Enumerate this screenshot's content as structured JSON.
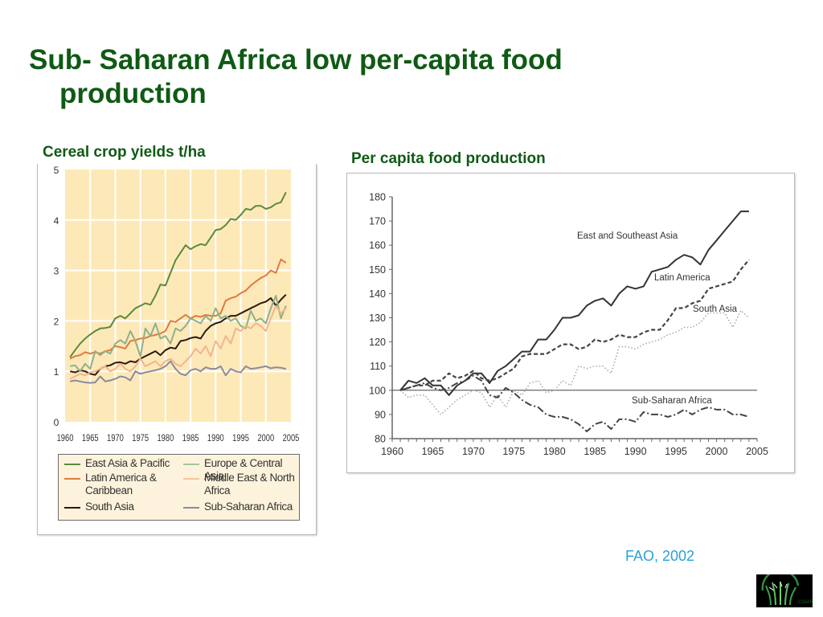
{
  "slide": {
    "title_line1": "Sub- Saharan Africa low per-capita food",
    "title_line2": "production",
    "citation": "FAO, 2002",
    "logo": "cgiar-wheat-logo"
  },
  "colors": {
    "title": "#0f5a14",
    "citation": "#2aa0d8",
    "left_plot_bg": "#fde9b8"
  },
  "chart_data": [
    {
      "type": "line",
      "title": "Cereal crop yields t/ha",
      "xlabel": "",
      "ylabel": "",
      "xlim": [
        1960,
        2005
      ],
      "ylim": [
        0,
        5
      ],
      "xticks": [
        "1960",
        "1965",
        "1970",
        "1975",
        "1980",
        "1985",
        "1990",
        "1995",
        "2000",
        "2005"
      ],
      "yticks": [
        "0",
        "1",
        "2",
        "3",
        "4",
        "5"
      ],
      "grid": true,
      "legend_position": "bottom",
      "x": [
        1961,
        1962,
        1963,
        1964,
        1965,
        1966,
        1967,
        1968,
        1969,
        1970,
        1971,
        1972,
        1973,
        1974,
        1975,
        1976,
        1977,
        1978,
        1979,
        1980,
        1981,
        1982,
        1983,
        1984,
        1985,
        1986,
        1987,
        1988,
        1989,
        1990,
        1991,
        1992,
        1993,
        1994,
        1995,
        1996,
        1997,
        1998,
        1999,
        2000,
        2001,
        2002,
        2003,
        2004
      ],
      "series": [
        {
          "name": "East Asia & Pacific",
          "color": "#5a8a3c",
          "values": [
            1.28,
            1.42,
            1.55,
            1.65,
            1.73,
            1.8,
            1.85,
            1.86,
            1.88,
            2.05,
            2.1,
            2.05,
            2.15,
            2.25,
            2.3,
            2.35,
            2.32,
            2.5,
            2.72,
            2.7,
            2.95,
            3.2,
            3.35,
            3.5,
            3.42,
            3.48,
            3.52,
            3.5,
            3.65,
            3.8,
            3.82,
            3.9,
            4.02,
            4.0,
            4.1,
            4.22,
            4.2,
            4.28,
            4.28,
            4.22,
            4.25,
            4.32,
            4.35,
            4.55
          ]
        },
        {
          "name": "Latin America & Caribbean",
          "color": "#e07a3c",
          "values": [
            1.25,
            1.3,
            1.32,
            1.38,
            1.35,
            1.38,
            1.35,
            1.4,
            1.42,
            1.5,
            1.48,
            1.45,
            1.6,
            1.62,
            1.65,
            1.66,
            1.7,
            1.72,
            1.75,
            1.8,
            2.0,
            1.98,
            2.05,
            2.12,
            2.05,
            2.1,
            2.08,
            2.12,
            2.1,
            2.1,
            2.15,
            2.4,
            2.45,
            2.48,
            2.55,
            2.6,
            2.7,
            2.78,
            2.85,
            2.9,
            3.0,
            2.95,
            3.22,
            3.15
          ]
        },
        {
          "name": "South Asia",
          "color": "#2a1a14",
          "values": [
            1.0,
            0.98,
            1.02,
            1.0,
            0.95,
            0.93,
            1.05,
            1.1,
            1.12,
            1.17,
            1.18,
            1.15,
            1.2,
            1.18,
            1.25,
            1.3,
            1.35,
            1.4,
            1.32,
            1.42,
            1.47,
            1.45,
            1.6,
            1.62,
            1.66,
            1.68,
            1.65,
            1.8,
            1.9,
            1.95,
            1.98,
            2.05,
            2.1,
            2.1,
            2.15,
            2.2,
            2.25,
            2.3,
            2.35,
            2.38,
            2.45,
            2.3,
            2.42,
            2.52
          ]
        },
        {
          "name": "Europe & Central Asia",
          "color": "#8fb08a",
          "values": [
            1.1,
            1.12,
            1.0,
            1.15,
            1.05,
            1.4,
            1.32,
            1.4,
            1.35,
            1.55,
            1.62,
            1.55,
            1.8,
            1.6,
            1.3,
            1.85,
            1.7,
            1.95,
            1.65,
            1.7,
            1.55,
            1.85,
            1.8,
            1.9,
            2.05,
            2.0,
            1.95,
            2.1,
            2.0,
            2.25,
            2.05,
            2.1,
            2.0,
            2.05,
            1.9,
            1.85,
            2.2,
            2.0,
            2.05,
            1.95,
            2.25,
            2.5,
            2.05,
            2.3
          ]
        },
        {
          "name": "Middle East & North Africa",
          "color": "#f2b48c",
          "values": [
            0.85,
            0.9,
            0.95,
            0.92,
            0.98,
            1.0,
            1.05,
            1.1,
            1.0,
            1.05,
            1.15,
            1.05,
            1.0,
            1.1,
            1.25,
            1.1,
            1.15,
            1.2,
            1.1,
            1.2,
            1.25,
            1.15,
            1.1,
            1.2,
            1.3,
            1.45,
            1.35,
            1.5,
            1.3,
            1.6,
            1.45,
            1.7,
            1.55,
            1.85,
            1.8,
            1.9,
            1.85,
            1.95,
            1.9,
            1.8,
            2.05,
            2.3,
            2.15,
            2.25
          ]
        },
        {
          "name": "Sub-Saharan Africa",
          "color": "#8a8aa0",
          "values": [
            0.8,
            0.82,
            0.8,
            0.78,
            0.77,
            0.78,
            0.9,
            0.8,
            0.82,
            0.85,
            0.9,
            0.88,
            0.82,
            1.0,
            0.95,
            0.98,
            1.0,
            1.02,
            1.05,
            1.1,
            1.2,
            1.05,
            0.95,
            0.92,
            1.02,
            1.05,
            1.0,
            1.08,
            1.05,
            1.05,
            1.1,
            0.92,
            1.05,
            1.0,
            0.98,
            1.1,
            1.05,
            1.06,
            1.08,
            1.1,
            1.06,
            1.08,
            1.07,
            1.05
          ]
        }
      ]
    },
    {
      "type": "line",
      "title": "Per capita food production",
      "xlabel": "",
      "ylabel": "",
      "xlim": [
        1960,
        2005
      ],
      "ylim": [
        80,
        180
      ],
      "xticks": [
        "1960",
        "1965",
        "1970",
        "1975",
        "1980",
        "1985",
        "1990",
        "1995",
        "2000",
        "2005"
      ],
      "yticks": [
        "80",
        "90",
        "100",
        "110",
        "120",
        "130",
        "140",
        "150",
        "160",
        "170",
        "180"
      ],
      "grid": false,
      "reference_line": 100,
      "legend_position": "inline-labels",
      "x": [
        1961,
        1962,
        1963,
        1964,
        1965,
        1966,
        1967,
        1968,
        1969,
        1970,
        1971,
        1972,
        1973,
        1974,
        1975,
        1976,
        1977,
        1978,
        1979,
        1980,
        1981,
        1982,
        1983,
        1984,
        1985,
        1986,
        1987,
        1988,
        1989,
        1990,
        1991,
        1992,
        1993,
        1994,
        1995,
        1996,
        1997,
        1998,
        1999,
        2000,
        2001,
        2002,
        2003,
        2004
      ],
      "series": [
        {
          "name": "East and Southeast Asia",
          "label": "East and Southeast Asia",
          "style": "solid",
          "values": [
            100,
            104,
            103,
            105,
            102,
            102,
            98,
            102,
            104,
            107,
            107,
            103,
            108,
            110,
            113,
            116,
            116,
            121,
            121,
            125,
            130,
            130,
            131,
            135,
            137,
            138,
            135,
            140,
            143,
            142,
            143,
            149,
            150,
            151,
            154,
            156,
            155,
            152,
            158,
            162,
            166,
            170,
            174,
            174
          ]
        },
        {
          "name": "Latin America",
          "label": "Latin America",
          "style": "dashed",
          "values": [
            100,
            101,
            102,
            102,
            104,
            104,
            107,
            105,
            106,
            108,
            105,
            104,
            105,
            107,
            109,
            114,
            115,
            115,
            115,
            117,
            119,
            119,
            117,
            118,
            121,
            120,
            121,
            123,
            122,
            122,
            124,
            125,
            125,
            129,
            134,
            134,
            136,
            137,
            142,
            143,
            144,
            145,
            150,
            154
          ]
        },
        {
          "name": "South Asia",
          "label": "South Asia",
          "style": "dotted",
          "values": [
            100,
            97,
            98,
            98,
            94,
            90,
            93,
            96,
            98,
            100,
            99,
            93,
            98,
            93,
            100,
            98,
            103,
            104,
            99,
            100,
            104,
            102,
            110,
            109,
            110,
            110,
            107,
            118,
            118,
            117,
            119,
            120,
            121,
            123,
            124,
            126,
            126,
            128,
            132,
            132,
            132,
            126,
            133,
            130
          ]
        },
        {
          "name": "Sub-Saharan Africa",
          "label": "Sub-Saharan Africa",
          "style": "dash-dot",
          "values": [
            100,
            101,
            102,
            103,
            101,
            100,
            101,
            103,
            104,
            106,
            104,
            98,
            97,
            101,
            99,
            96,
            94,
            93,
            90,
            89,
            89,
            88,
            86,
            83,
            86,
            87,
            84,
            88,
            88,
            87,
            91,
            90,
            90,
            89,
            90,
            92,
            90,
            92,
            93,
            92,
            92,
            90,
            90,
            89
          ]
        }
      ]
    }
  ],
  "left_chart": {
    "subtitle": "Cereal crop yields t/ha",
    "legend": [
      {
        "label_lines": [
          "East Asia & Pacific"
        ],
        "color": "#5a8a3c"
      },
      {
        "label_lines": [
          "Latin America &",
          "Caribbean"
        ],
        "color": "#e07a3c"
      },
      {
        "label_lines": [
          "South Asia"
        ],
        "color": "#2a1a14"
      },
      {
        "label_lines": [
          "Europe & Central Asia"
        ],
        "color": "#a9c49e"
      },
      {
        "label_lines": [
          "Middle East & North",
          "Africa"
        ],
        "color": "#f2c4a0"
      },
      {
        "label_lines": [
          "Sub-Saharan Africa"
        ],
        "color": "#8a8aa0"
      }
    ]
  },
  "right_chart": {
    "subtitle": "Per capita food production"
  }
}
